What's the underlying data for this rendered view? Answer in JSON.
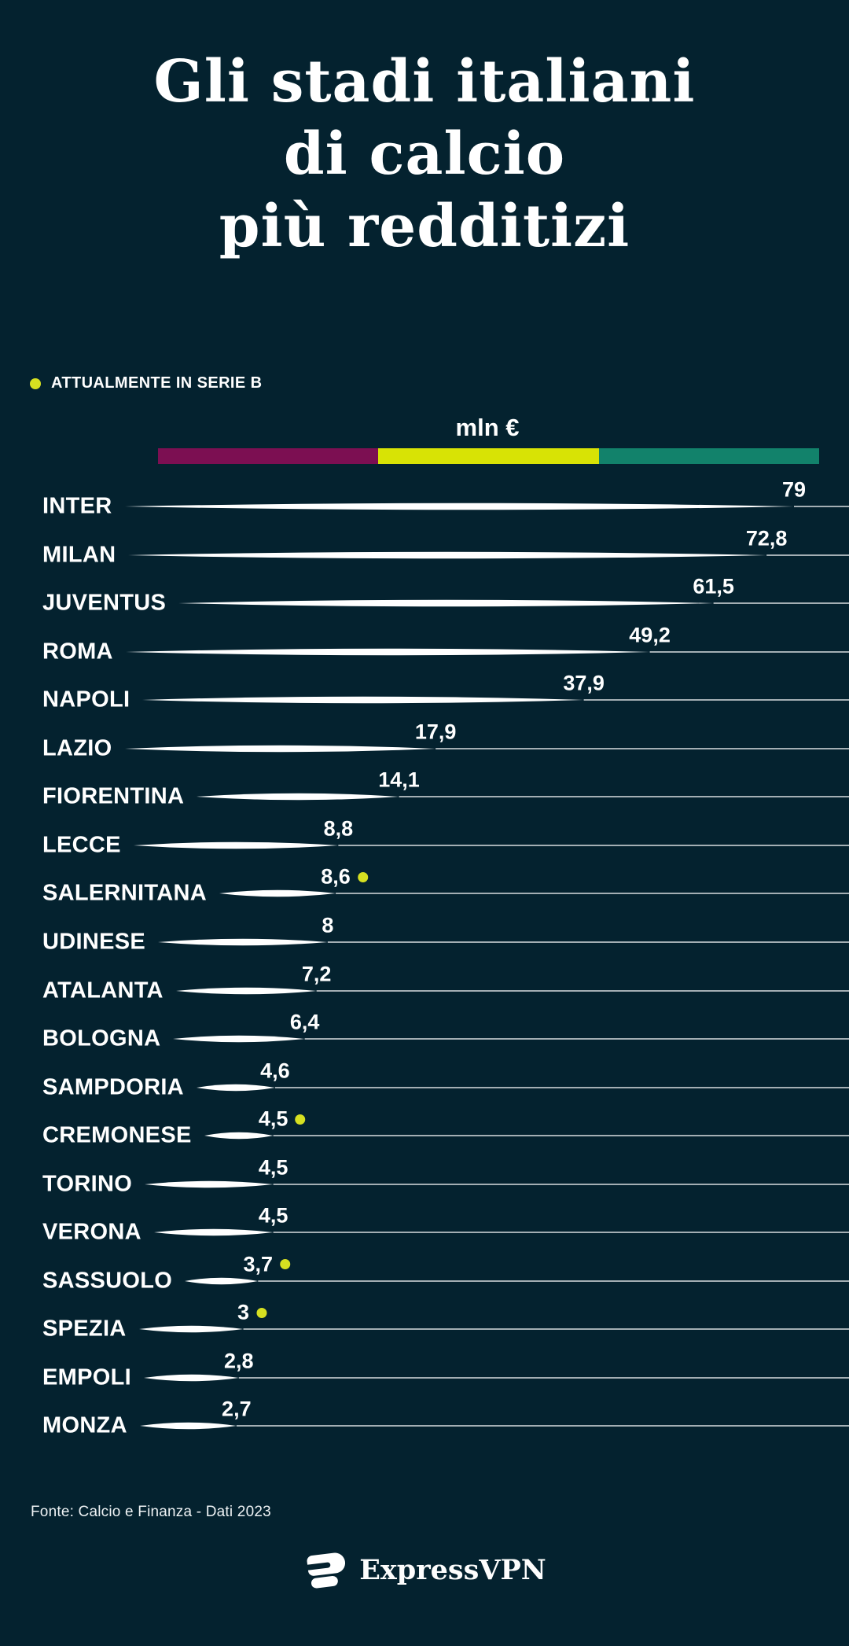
{
  "page": {
    "background_color": "#04222f"
  },
  "title": {
    "lines": [
      "Gli stadi italiani",
      "di calcio",
      "più redditizi"
    ]
  },
  "legend": {
    "dot_color": "#d6e021",
    "label": "ATTUALMENTE IN SERIE B"
  },
  "chart_data": {
    "type": "bar",
    "title": "Gli stadi italiani di calcio più redditizi",
    "unit_label": "mln €",
    "scale_bar_colors": [
      "#7c0f52",
      "#d8e305",
      "#12826b"
    ],
    "value_range": [
      0,
      79
    ],
    "legend": {
      "text": "ATTUALMENTE IN SERIE B",
      "position": "top-left"
    },
    "rows": [
      {
        "team": "INTER",
        "value": 79,
        "label": "79",
        "serie_b": false
      },
      {
        "team": "MILAN",
        "value": 72.8,
        "label": "72,8",
        "serie_b": false
      },
      {
        "team": "JUVENTUS",
        "value": 61.5,
        "label": "61,5",
        "serie_b": false
      },
      {
        "team": "ROMA",
        "value": 49.2,
        "label": "49,2",
        "serie_b": false
      },
      {
        "team": "NAPOLI",
        "value": 37.9,
        "label": "37,9",
        "serie_b": false
      },
      {
        "team": "LAZIO",
        "value": 17.9,
        "label": "17,9",
        "serie_b": false
      },
      {
        "team": "FIORENTINA",
        "value": 14.1,
        "label": "14,1",
        "serie_b": false
      },
      {
        "team": "LECCE",
        "value": 8.8,
        "label": "8,8",
        "serie_b": false
      },
      {
        "team": "SALERNITANA",
        "value": 8.6,
        "label": "8,6",
        "serie_b": true
      },
      {
        "team": "UDINESE",
        "value": 8,
        "label": "8",
        "serie_b": false
      },
      {
        "team": "ATALANTA",
        "value": 7.2,
        "label": "7,2",
        "serie_b": false
      },
      {
        "team": "BOLOGNA",
        "value": 6.4,
        "label": "6,4",
        "serie_b": false
      },
      {
        "team": "SAMPDORIA",
        "value": 4.6,
        "label": "4,6",
        "serie_b": false
      },
      {
        "team": "CREMONESE",
        "value": 4.5,
        "label": "4,5",
        "serie_b": true
      },
      {
        "team": "TORINO",
        "value": 4.5,
        "label": "4,5",
        "serie_b": false
      },
      {
        "team": "VERONA",
        "value": 4.5,
        "label": "4,5",
        "serie_b": false
      },
      {
        "team": "SASSUOLO",
        "value": 3.7,
        "label": "3,7",
        "serie_b": true
      },
      {
        "team": "SPEZIA",
        "value": 3,
        "label": "3",
        "serie_b": true
      },
      {
        "team": "EMPOLI",
        "value": 2.8,
        "label": "2,8",
        "serie_b": false
      },
      {
        "team": "MONZA",
        "value": 2.7,
        "label": "2,7",
        "serie_b": false
      }
    ]
  },
  "footer": {
    "source": "Fonte: Calcio e Finanza - Dati 2023",
    "brand": "ExpressVPN"
  }
}
